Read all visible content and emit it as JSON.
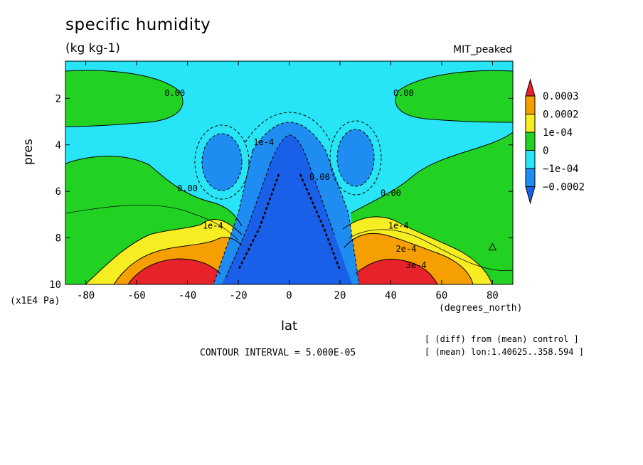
{
  "header": {
    "title": "specific humidity",
    "units": "(kg kg-1)",
    "dataset": "MIT_peaked"
  },
  "footer": {
    "contour_interval": "CONTOUR INTERVAL = 5.000E-05",
    "note_diff": "[ (diff) from (mean) control ]",
    "note_mean": "[ (mean) lon:1.40625..358.594 ]"
  },
  "chart_data": {
    "type": "heatmap",
    "title": "specific humidity",
    "subtitle": "(kg kg-1)",
    "xlabel": "lat",
    "xunits": "(degrees_north)",
    "ylabel": "pres",
    "yunits": "(x1E4 Pa)",
    "xlim": [
      -88,
      88
    ],
    "ylim": [
      10,
      0.4
    ],
    "xticks": [
      -80,
      -60,
      -40,
      -20,
      0,
      20,
      40,
      60,
      80
    ],
    "yticks": [
      2,
      4,
      6,
      8,
      10
    ],
    "legend": {
      "position": "right",
      "labels": [
        "0.0003",
        "0.0002",
        "1e-04",
        "0",
        "−1e-04",
        "−0.0002"
      ],
      "colors": [
        "#e8222a",
        "#f5a000",
        "#f6ee22",
        "#22d222",
        "#27e5f6",
        "#1e8cf0",
        "#1a5fe8"
      ]
    },
    "contour_labels": [
      {
        "text": "0.00",
        "x": -45,
        "y": 1.9
      },
      {
        "text": "0.00",
        "x": 45,
        "y": 1.9
      },
      {
        "text": "0.00",
        "x": -40,
        "y": 6.0
      },
      {
        "text": "0.00",
        "x": 40,
        "y": 6.2
      },
      {
        "text": "1e-4",
        "x": -30,
        "y": 7.6
      },
      {
        "text": "1e-4",
        "x": 43,
        "y": 7.6
      },
      {
        "text": "2e-4",
        "x": 46,
        "y": 8.6
      },
      {
        "text": "3e-4",
        "x": 50,
        "y": 9.3
      },
      {
        "text": "1e-4",
        "x": -10,
        "y": 4.0
      },
      {
        "text": "0.00",
        "x": 12,
        "y": 5.5
      }
    ],
    "marker": {
      "symbol": "triangle",
      "x": 80,
      "y": 8.4
    },
    "contour_interval": 5e-05
  }
}
